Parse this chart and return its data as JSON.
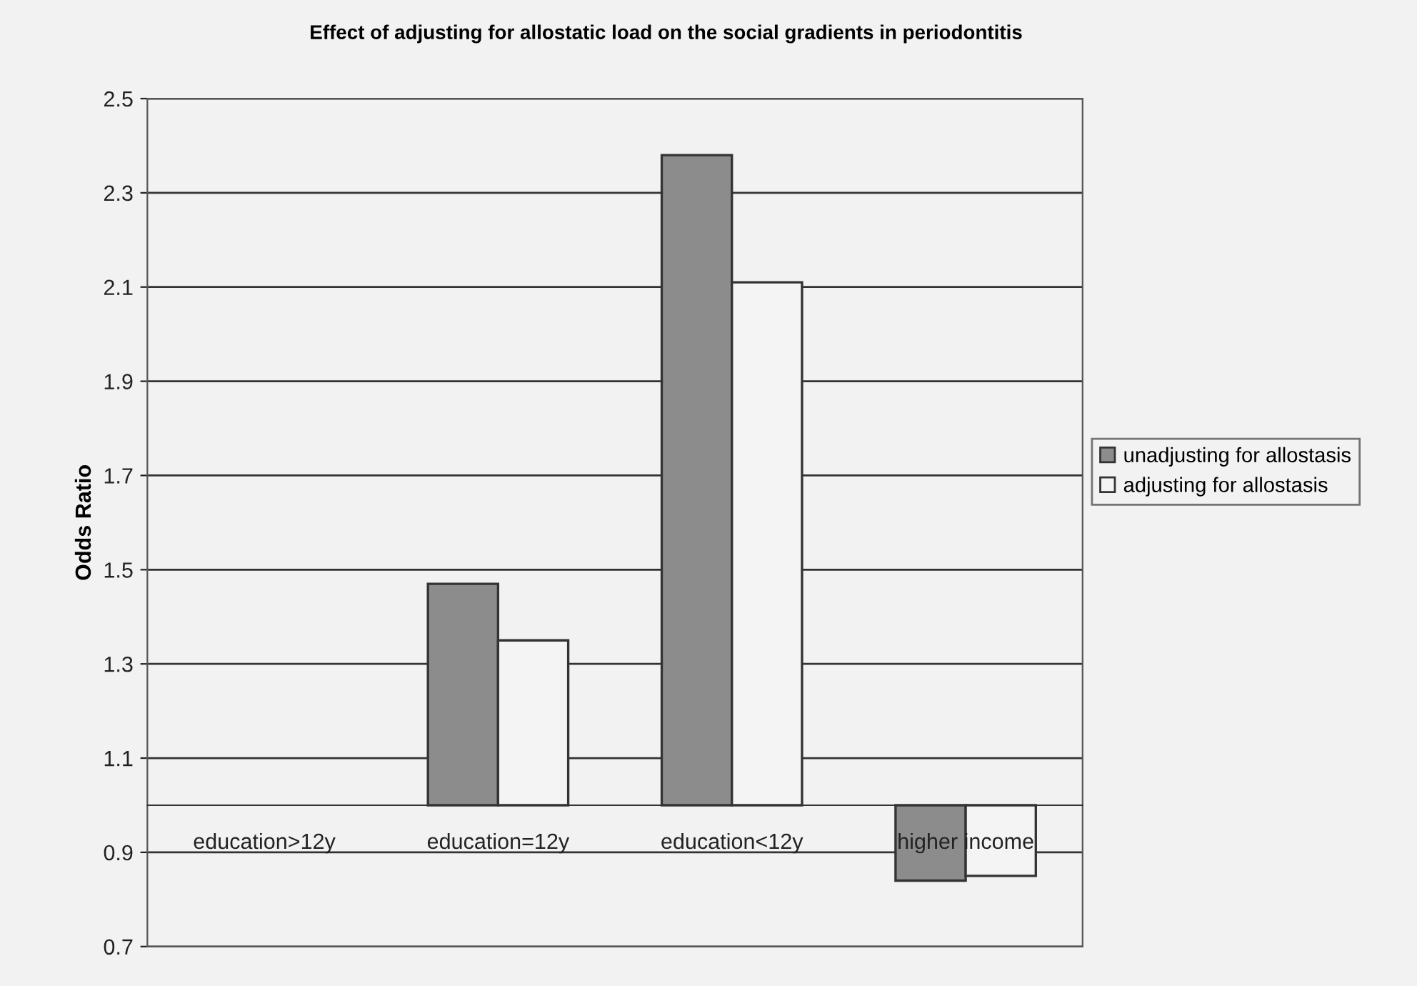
{
  "chart_data": {
    "type": "bar",
    "title": "Effect of adjusting for allostatic load on the social gradients in periodontitis",
    "ylabel": "Odds Ratio",
    "categories": [
      "education>12y",
      "education=12y",
      "education<12y",
      "higher income"
    ],
    "series": [
      {
        "name": "unadjusting for allostasis",
        "color": "#8c8c8c",
        "base": [
          null,
          1,
          1,
          1
        ],
        "values": [
          null,
          0.47,
          1.38,
          -0.16
        ]
      },
      {
        "name": "adjusting for allostasis",
        "color": "#f4f4f4",
        "base": [
          null,
          1,
          1,
          1
        ],
        "values": [
          null,
          0.35,
          1.11,
          -0.15
        ]
      }
    ],
    "ylim": [
      0.7,
      2.5
    ],
    "yticks": [
      0.7,
      0.9,
      1.1,
      1.3,
      1.5,
      1.7,
      1.9,
      2.1,
      2.3,
      2.5
    ],
    "grid": "y",
    "legend": "right"
  }
}
